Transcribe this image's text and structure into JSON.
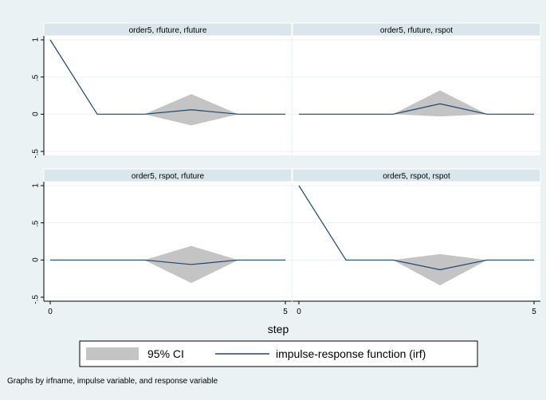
{
  "chart_data": {
    "type": "line",
    "xlabel": "step",
    "xlim": [
      0,
      5
    ],
    "ylim": [
      -0.5,
      1
    ],
    "x_ticks": [
      0,
      5
    ],
    "y_ticks": [
      1,
      0.5,
      0,
      -0.5
    ],
    "y_tick_labels": [
      "1",
      ".5",
      "0",
      "-.5"
    ],
    "grid": true,
    "legend_placement": "bottom",
    "legend": [
      {
        "key": "ci",
        "label": "95% CI"
      },
      {
        "key": "irf",
        "label": "impulse-response function (irf)"
      }
    ],
    "colors": {
      "ci": "#c4c4c4",
      "irf": "#1a476f",
      "background": "#eaf2f3",
      "plot": "#ffffff",
      "grid": "#eaf2f3",
      "title_bar": "#d9e6eb"
    },
    "note": "Graphs by irfname, impulse variable, and response variable",
    "panels": [
      {
        "title": "order5, rfuture, rfuture",
        "x": [
          0,
          1,
          2,
          3,
          4,
          5
        ],
        "irf": [
          1,
          0,
          0,
          0.06,
          0,
          0
        ],
        "ci_lower": [
          1,
          0,
          0,
          -0.15,
          0,
          0
        ],
        "ci_upper": [
          1,
          0,
          0,
          0.27,
          0,
          0
        ]
      },
      {
        "title": "order5, rfuture, rspot",
        "x": [
          0,
          1,
          2,
          3,
          4,
          5
        ],
        "irf": [
          0,
          0,
          0,
          0.14,
          0,
          0
        ],
        "ci_lower": [
          0,
          0,
          0,
          -0.03,
          0,
          0
        ],
        "ci_upper": [
          0,
          0,
          0,
          0.32,
          0,
          0
        ]
      },
      {
        "title": "order5, rspot, rfuture",
        "x": [
          0,
          1,
          2,
          3,
          4,
          5
        ],
        "irf": [
          0,
          0,
          0,
          -0.06,
          0,
          0
        ],
        "ci_lower": [
          0,
          0,
          0,
          -0.31,
          0,
          0
        ],
        "ci_upper": [
          0,
          0,
          0,
          0.19,
          0,
          0
        ]
      },
      {
        "title": "order5, rspot, rspot",
        "x": [
          0,
          1,
          2,
          3,
          4,
          5
        ],
        "irf": [
          1,
          0,
          0,
          -0.13,
          0,
          0
        ],
        "ci_lower": [
          1,
          0,
          0,
          -0.34,
          0,
          0
        ],
        "ci_upper": [
          1,
          0,
          0,
          0.08,
          0,
          0
        ]
      }
    ]
  }
}
